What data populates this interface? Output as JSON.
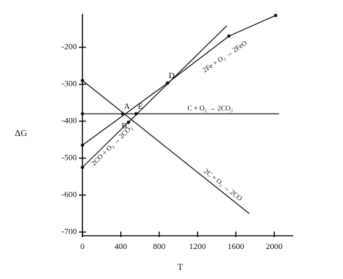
{
  "chart_data": {
    "type": "line",
    "x_label": "T",
    "y_label": "ΔG",
    "xlim": [
      0,
      2200
    ],
    "ylim": [
      -710,
      -110
    ],
    "xticks": [
      0,
      400,
      800,
      1200,
      1600,
      2000
    ],
    "yticks": [
      -200,
      -300,
      -400,
      -500,
      -600,
      -700
    ],
    "color": "#111",
    "series": [
      {
        "name": "C + O₂ → 2CO₂",
        "x": [
          0,
          2050
        ],
        "values": [
          -380,
          -380
        ]
      },
      {
        "name": "2C + O₂ → 2CO",
        "x": [
          0,
          1740
        ],
        "values": [
          -290,
          -650
        ]
      },
      {
        "name": "2CO + O₂ → 2CO₂",
        "x": [
          0,
          1505
        ],
        "values": [
          -525,
          -142
        ]
      },
      {
        "name": "2Fe + O₂ → 2FeO",
        "x": [
          0,
          887,
          1527,
          2015
        ],
        "values": [
          -465,
          -297,
          -170,
          -114
        ]
      }
    ],
    "annotations": [
      {
        "text": "A",
        "x": 420,
        "y": -380
      },
      {
        "text": "B",
        "x": 480,
        "y": -403
      },
      {
        "text": "D",
        "x": 887,
        "y": -297
      },
      {
        "text": "E",
        "x": 560,
        "y": -380
      }
    ]
  }
}
